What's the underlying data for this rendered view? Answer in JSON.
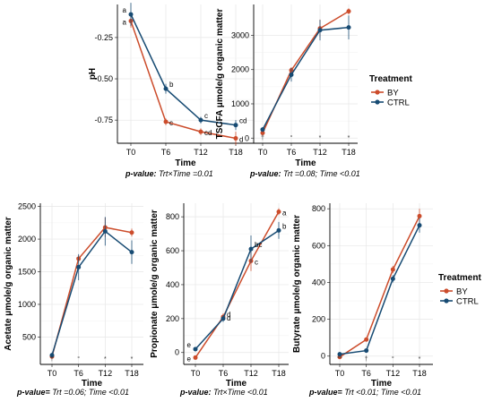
{
  "colors": {
    "BY": "#cc4c2b",
    "CTRL": "#174b73"
  },
  "legend": {
    "title": "Treatment",
    "items": [
      "BY",
      "CTRL"
    ]
  },
  "chart_data": [
    {
      "id": "ph",
      "type": "line",
      "categories": [
        "T0",
        "T6",
        "T12",
        "T18"
      ],
      "xlabel": "Time",
      "ylabel": "pH",
      "ylim": [
        -0.89,
        -0.05
      ],
      "yticks": [
        -0.25,
        -0.5,
        -0.75
      ],
      "ytick_labels": [
        "-0.25",
        "-0.50",
        "-0.75"
      ],
      "series": [
        {
          "name": "BY",
          "values": [
            -0.15,
            -0.76,
            -0.82,
            -0.86
          ],
          "err": [
            0.04,
            0.02,
            0.02,
            0.04
          ],
          "labels": [
            "a",
            "c",
            "cd",
            "d"
          ]
        },
        {
          "name": "CTRL",
          "values": [
            -0.11,
            -0.56,
            -0.75,
            -0.78
          ],
          "err": [
            0.07,
            0.03,
            0.02,
            0.03
          ],
          "labels": [
            "a",
            "b",
            "c",
            "cd"
          ]
        }
      ],
      "marks": [],
      "caption": {
        "bold": "p-value:",
        "text": " Trt×Time =0.01"
      }
    },
    {
      "id": "tscfa",
      "type": "line",
      "categories": [
        "T0",
        "T6",
        "T12",
        "T18"
      ],
      "xlabel": "Time",
      "ylabel": "TSCFA μmole/g organic matter",
      "ylim": [
        -150,
        3900
      ],
      "yticks": [
        0,
        1000,
        2000,
        3000
      ],
      "ytick_labels": [
        "0",
        "1000",
        "2000",
        "3000"
      ],
      "series": [
        {
          "name": "BY",
          "values": [
            150,
            1980,
            3200,
            3700
          ],
          "err": [
            90,
            90,
            260,
            90
          ],
          "labels": []
        },
        {
          "name": "CTRL",
          "values": [
            250,
            1850,
            3150,
            3230
          ],
          "err": [
            70,
            200,
            300,
            350
          ],
          "labels": []
        }
      ],
      "marks": [
        "†",
        "°",
        "*",
        "*"
      ],
      "caption": {
        "bold": "p-value:",
        "text": " Trt =0.08; Time <0.01"
      }
    },
    {
      "id": "acetate",
      "type": "line",
      "categories": [
        "T0",
        "T6",
        "T12",
        "T18"
      ],
      "xlabel": "Time",
      "ylabel": "Acetate μmole/g organic matter",
      "ylim": [
        80,
        2550
      ],
      "yticks": [
        500,
        1000,
        1500,
        2000,
        2500
      ],
      "ytick_labels": [
        "500",
        "1000",
        "1500",
        "2000",
        "2500"
      ],
      "series": [
        {
          "name": "BY",
          "values": [
            200,
            1700,
            2180,
            2100
          ],
          "err": [
            30,
            50,
            150,
            60
          ],
          "labels": []
        },
        {
          "name": "CTRL",
          "values": [
            220,
            1570,
            2120,
            1800
          ],
          "err": [
            40,
            200,
            220,
            180
          ],
          "labels": []
        }
      ],
      "marks": [
        "†",
        "°",
        "*",
        "*"
      ],
      "caption": {
        "bold": "p-value=",
        "text": " Trt =0.06; Time <0.01"
      }
    },
    {
      "id": "propionate",
      "type": "line",
      "categories": [
        "T0",
        "T6",
        "T12",
        "T18"
      ],
      "xlabel": "Time",
      "ylabel": "Propionate μmole/g organic matter",
      "ylim": [
        -70,
        880
      ],
      "yticks": [
        0,
        200,
        400,
        600,
        800
      ],
      "ytick_labels": [
        "0",
        "200",
        "400",
        "600",
        "800"
      ],
      "series": [
        {
          "name": "BY",
          "values": [
            -30,
            210,
            540,
            830
          ],
          "err": [
            10,
            20,
            60,
            20
          ],
          "labels": [
            "e",
            "d",
            "c",
            "a"
          ]
        },
        {
          "name": "CTRL",
          "values": [
            20,
            200,
            610,
            720
          ],
          "err": [
            10,
            20,
            80,
            50
          ],
          "labels": [
            "e",
            "d",
            "bc",
            "b"
          ]
        }
      ],
      "marks": [],
      "caption": {
        "bold": "p-value:",
        "text": " Trt×Time <0.01"
      }
    },
    {
      "id": "butyrate",
      "type": "line",
      "categories": [
        "T0",
        "T6",
        "T12",
        "T18"
      ],
      "xlabel": "Time",
      "ylabel": "Butyrate μmole/g organic matter",
      "ylim": [
        -45,
        830
      ],
      "yticks": [
        0,
        200,
        400,
        600,
        800
      ],
      "ytick_labels": [
        "0",
        "200",
        "400",
        "600",
        "800"
      ],
      "series": [
        {
          "name": "BY",
          "values": [
            -5,
            90,
            470,
            760
          ],
          "err": [
            5,
            10,
            20,
            40
          ],
          "labels": []
        },
        {
          "name": "CTRL",
          "values": [
            10,
            30,
            420,
            710
          ],
          "err": [
            5,
            10,
            20,
            40
          ],
          "labels": []
        }
      ],
      "marks": [
        "°°",
        "†",
        "°",
        "*"
      ],
      "caption": {
        "bold": "p-value=",
        "text": " Trt <0.01; Time <0.01"
      }
    }
  ]
}
